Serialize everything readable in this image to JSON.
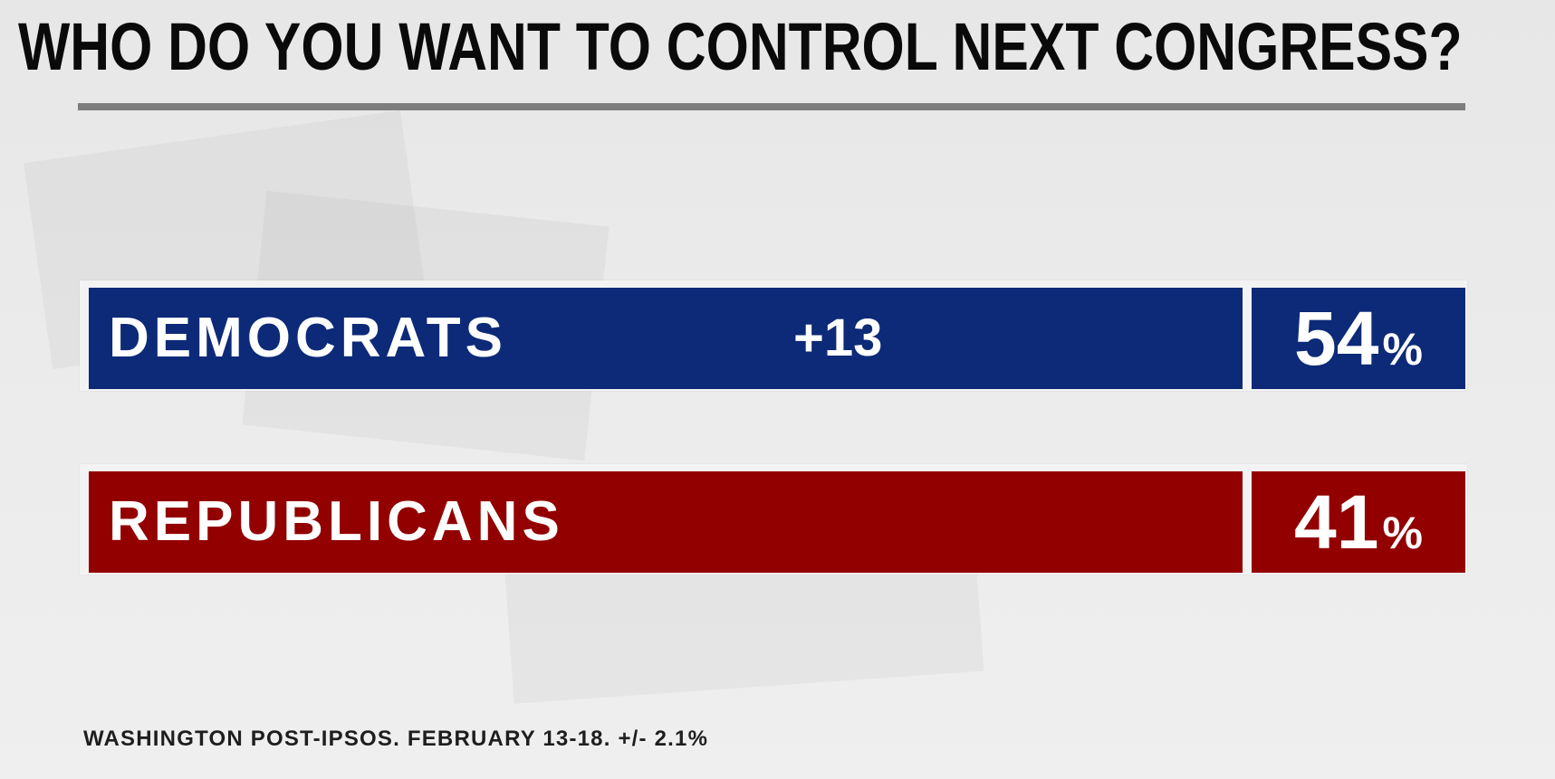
{
  "title": "WHO DO YOU WANT TO CONTROL NEXT CONGRESS?",
  "source": "WASHINGTON POST-IPSOS. FEBRUARY 13-18. +/- 2.1%",
  "colors": {
    "democrats": "#0d2a78",
    "republicans": "#930000"
  },
  "chart_data": {
    "type": "bar",
    "title": "WHO DO YOU WANT TO CONTROL NEXT CONGRESS?",
    "categories": [
      "DEMOCRATS",
      "REPUBLICANS"
    ],
    "values": [
      54,
      41
    ],
    "value_labels": [
      "54",
      "41"
    ],
    "unit": "%",
    "margin_label": "+13",
    "series": [
      {
        "values": [
          54,
          41
        ]
      }
    ],
    "ylim": [
      0,
      100
    ],
    "grid": false,
    "legend": "none"
  }
}
